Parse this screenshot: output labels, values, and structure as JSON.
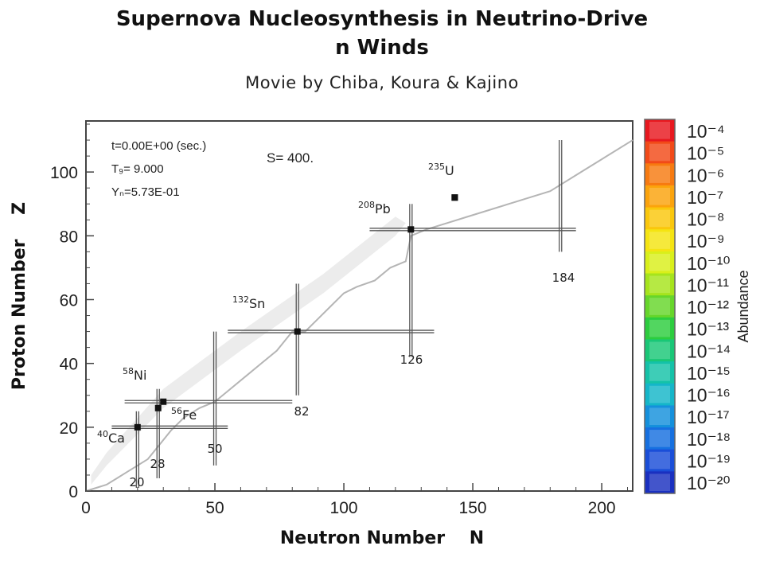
{
  "title": "Supernova Nucleosynthesis in Neutrino-Driven Winds",
  "subtitle": "Movie by Chiba, Koura & Kajino",
  "chart_data": {
    "type": "scatter",
    "xlabel": "Neutron Number    N",
    "ylabel": "Proton Number    Z",
    "xlim": [
      0,
      212
    ],
    "ylim": [
      0,
      116
    ],
    "x_ticks": [
      0,
      50,
      100,
      150,
      200
    ],
    "y_ticks": [
      0,
      20,
      40,
      60,
      80,
      100
    ],
    "grid": false,
    "info": {
      "time": "t=0.00E+00 (sec.)",
      "temperature": "T₉=  9.000",
      "neutron_abundance": "Yₙ=5.73E-01",
      "entropy": "S= 400."
    },
    "isotopes": [
      {
        "mass": "40",
        "symbol": "Ca",
        "n": 20,
        "z": 20
      },
      {
        "mass": "58",
        "symbol": "Ni",
        "n": 30,
        "z": 28
      },
      {
        "mass": "56",
        "symbol": "Fe",
        "n": 30,
        "z": 26
      },
      {
        "mass": "132",
        "symbol": "Sn",
        "n": 82,
        "z": 50
      },
      {
        "mass": "208",
        "symbol": "Pb",
        "n": 126,
        "z": 82
      },
      {
        "mass": "235",
        "symbol": "U",
        "n": 143,
        "z": 92
      }
    ],
    "magic_neutron_labels": [
      "20",
      "28",
      "50",
      "82",
      "126",
      "184"
    ],
    "magic_lines": {
      "vertical": [
        {
          "n": 20,
          "z": [
            1,
            25
          ]
        },
        {
          "n": 28,
          "z": [
            4,
            32
          ]
        },
        {
          "n": 50,
          "z": [
            8,
            50
          ]
        },
        {
          "n": 82,
          "z": [
            30,
            65
          ]
        },
        {
          "n": 126,
          "z": [
            42,
            90
          ]
        },
        {
          "n": 184,
          "z": [
            75,
            110
          ]
        }
      ],
      "horizontal": [
        {
          "z": 20,
          "n": [
            10,
            55
          ]
        },
        {
          "z": 28,
          "n": [
            15,
            80
          ]
        },
        {
          "z": 50,
          "n": [
            55,
            135
          ]
        },
        {
          "z": 82,
          "n": [
            110,
            190
          ]
        }
      ]
    },
    "nuclei": [
      [
        28,
        26
      ],
      [
        143,
        92
      ]
    ],
    "drip_line": [
      [
        0,
        0
      ],
      [
        4,
        1
      ],
      [
        8,
        2
      ],
      [
        12,
        4
      ],
      [
        16,
        6
      ],
      [
        20,
        8
      ],
      [
        24,
        10
      ],
      [
        28,
        14
      ],
      [
        33,
        19
      ],
      [
        38,
        23
      ],
      [
        44,
        26
      ],
      [
        50,
        28
      ],
      [
        56,
        32
      ],
      [
        62,
        36
      ],
      [
        68,
        40
      ],
      [
        74,
        44
      ],
      [
        80,
        50
      ],
      [
        85,
        50
      ],
      [
        90,
        54
      ],
      [
        95,
        58
      ],
      [
        100,
        62
      ],
      [
        105,
        64
      ],
      [
        112,
        66
      ],
      [
        118,
        70
      ],
      [
        124,
        72
      ],
      [
        126,
        80
      ],
      [
        132,
        82
      ],
      [
        140,
        84
      ],
      [
        148,
        86
      ],
      [
        156,
        88
      ],
      [
        164,
        90
      ],
      [
        172,
        92
      ],
      [
        180,
        94
      ],
      [
        184,
        96
      ],
      [
        192,
        100
      ],
      [
        200,
        104
      ],
      [
        212,
        110
      ]
    ],
    "colorbar": {
      "label": "Abundance",
      "tick_labels": [
        "10⁻⁴",
        "10⁻⁵",
        "10⁻⁶",
        "10⁻⁷",
        "10⁻⁸",
        "10⁻⁹",
        "10⁻¹⁰",
        "10⁻¹¹",
        "10⁻¹²",
        "10⁻¹³",
        "10⁻¹⁴",
        "10⁻¹⁵",
        "10⁻¹⁶",
        "10⁻¹⁷",
        "10⁻¹⁸",
        "10⁻¹⁹",
        "10⁻²⁰"
      ],
      "colors": [
        "#e8181f",
        "#f24a18",
        "#f77a10",
        "#fba30c",
        "#fac70c",
        "#f5e412",
        "#d9ef1a",
        "#a6e41c",
        "#66d62a",
        "#2ccd3e",
        "#19c777",
        "#14c2a8",
        "#14b6c9",
        "#1490dc",
        "#1670e0",
        "#1a4ed8",
        "#1a30c0"
      ]
    }
  }
}
